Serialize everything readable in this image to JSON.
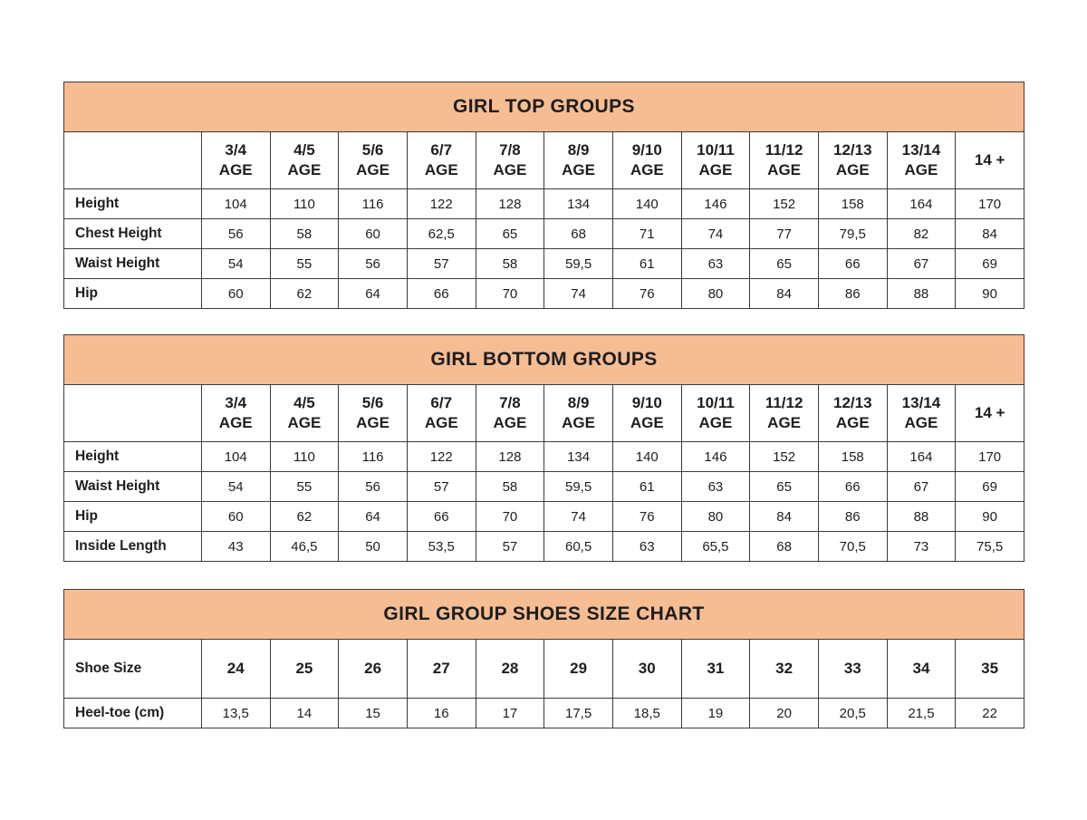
{
  "canvas": {
    "background": "#ffffff"
  },
  "colors": {
    "title_band": "#f6bd93",
    "border": "#3b3b3b",
    "text": "#1e1e1e"
  },
  "chart_data": [
    {
      "type": "table",
      "id": "girl-top-groups",
      "title": "GIRL TOP GROUPS",
      "age_columns": [
        {
          "top": "3/4",
          "bottom": "AGE"
        },
        {
          "top": "4/5",
          "bottom": "AGE"
        },
        {
          "top": "5/6",
          "bottom": "AGE"
        },
        {
          "top": "6/7",
          "bottom": "AGE"
        },
        {
          "top": "7/8",
          "bottom": "AGE"
        },
        {
          "top": "8/9",
          "bottom": "AGE"
        },
        {
          "top": "9/10",
          "bottom": "AGE"
        },
        {
          "top": "10/11",
          "bottom": "AGE"
        },
        {
          "top": "11/12",
          "bottom": "AGE"
        },
        {
          "top": "12/13",
          "bottom": "AGE"
        },
        {
          "top": "13/14",
          "bottom": "AGE"
        },
        {
          "top": "14 +",
          "bottom": ""
        }
      ],
      "rows": [
        {
          "label": "Height",
          "values": [
            "104",
            "110",
            "116",
            "122",
            "128",
            "134",
            "140",
            "146",
            "152",
            "158",
            "164",
            "170"
          ]
        },
        {
          "label": "Chest Height",
          "values": [
            "56",
            "58",
            "60",
            "62,5",
            "65",
            "68",
            "71",
            "74",
            "77",
            "79,5",
            "82",
            "84"
          ]
        },
        {
          "label": "Waist Height",
          "values": [
            "54",
            "55",
            "56",
            "57",
            "58",
            "59,5",
            "61",
            "63",
            "65",
            "66",
            "67",
            "69"
          ]
        },
        {
          "label": "Hip",
          "values": [
            "60",
            "62",
            "64",
            "66",
            "70",
            "74",
            "76",
            "80",
            "84",
            "86",
            "88",
            "90"
          ]
        }
      ]
    },
    {
      "type": "table",
      "id": "girl-bottom-groups",
      "title": "GIRL BOTTOM GROUPS",
      "age_columns": [
        {
          "top": "3/4",
          "bottom": "AGE"
        },
        {
          "top": "4/5",
          "bottom": "AGE"
        },
        {
          "top": "5/6",
          "bottom": "AGE"
        },
        {
          "top": "6/7",
          "bottom": "AGE"
        },
        {
          "top": "7/8",
          "bottom": "AGE"
        },
        {
          "top": "8/9",
          "bottom": "AGE"
        },
        {
          "top": "9/10",
          "bottom": "AGE"
        },
        {
          "top": "10/11",
          "bottom": "AGE"
        },
        {
          "top": "11/12",
          "bottom": "AGE"
        },
        {
          "top": "12/13",
          "bottom": "AGE"
        },
        {
          "top": "13/14",
          "bottom": "AGE"
        },
        {
          "top": "14 +",
          "bottom": ""
        }
      ],
      "rows": [
        {
          "label": "Height",
          "values": [
            "104",
            "110",
            "116",
            "122",
            "128",
            "134",
            "140",
            "146",
            "152",
            "158",
            "164",
            "170"
          ]
        },
        {
          "label": "Waist Height",
          "values": [
            "54",
            "55",
            "56",
            "57",
            "58",
            "59,5",
            "61",
            "63",
            "65",
            "66",
            "67",
            "69"
          ]
        },
        {
          "label": "Hip",
          "values": [
            "60",
            "62",
            "64",
            "66",
            "70",
            "74",
            "76",
            "80",
            "84",
            "86",
            "88",
            "90"
          ]
        },
        {
          "label": "Inside Length",
          "values": [
            "43",
            "46,5",
            "50",
            "53,5",
            "57",
            "60,5",
            "63",
            "65,5",
            "68",
            "70,5",
            "73",
            "75,5"
          ]
        }
      ]
    },
    {
      "type": "table",
      "id": "girl-group-shoes-size-chart",
      "title": "GIRL GROUP SHOES SIZE CHART",
      "age_columns": [],
      "rows": [
        {
          "label": "Shoe Size",
          "emphasis": true,
          "values": [
            "24",
            "25",
            "26",
            "27",
            "28",
            "29",
            "30",
            "31",
            "32",
            "33",
            "34",
            "35"
          ]
        },
        {
          "label": "Heel-toe (cm)",
          "values": [
            "13,5",
            "14",
            "15",
            "16",
            "17",
            "17,5",
            "18,5",
            "19",
            "20",
            "20,5",
            "21,5",
            "22"
          ]
        }
      ]
    }
  ]
}
